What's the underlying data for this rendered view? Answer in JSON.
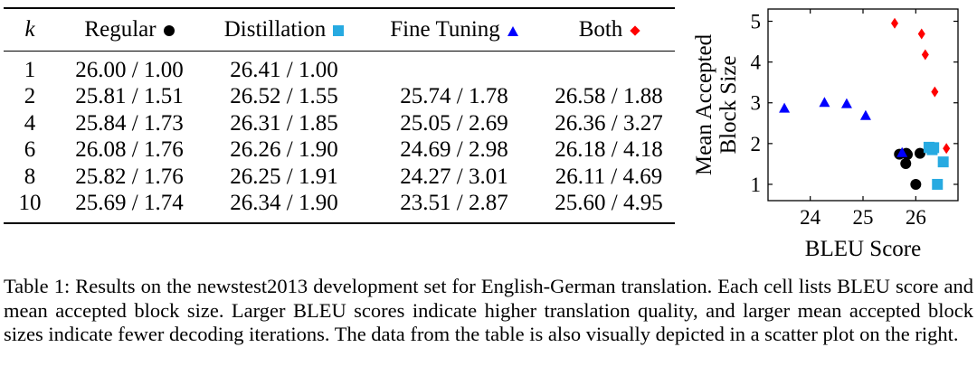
{
  "table": {
    "headers": [
      {
        "label": "k",
        "marker": "none"
      },
      {
        "label": "Regular",
        "marker": "circle",
        "color": "#000000"
      },
      {
        "label": "Distillation",
        "marker": "square",
        "color": "#27aae1"
      },
      {
        "label": "Fine Tuning",
        "marker": "triangle",
        "color": "#0000ff"
      },
      {
        "label": "Both",
        "marker": "diamond",
        "color": "#ff0000"
      }
    ],
    "rows": [
      [
        "1",
        "26.00 / 1.00",
        "26.41 / 1.00",
        "",
        ""
      ],
      [
        "2",
        "25.81 / 1.51",
        "26.52 / 1.55",
        "25.74 / 1.78",
        "26.58 / 1.88"
      ],
      [
        "4",
        "25.84 / 1.73",
        "26.31 / 1.85",
        "25.05 / 2.69",
        "26.36 / 3.27"
      ],
      [
        "6",
        "26.08 / 1.76",
        "26.26 / 1.90",
        "24.69 / 2.98",
        "26.18 / 4.18"
      ],
      [
        "8",
        "25.82 / 1.76",
        "26.25 / 1.91",
        "24.27 / 3.01",
        "26.11 / 4.69"
      ],
      [
        "10",
        "25.69 / 1.74",
        "26.34 / 1.90",
        "23.51 / 2.87",
        "25.60 / 4.95"
      ]
    ]
  },
  "chart_data": {
    "type": "scatter",
    "xlabel": "BLEU Score",
    "ylabel": "Mean Accepted Block Size",
    "xlim": [
      23.2,
      26.8
    ],
    "ylim": [
      0.6,
      5.3
    ],
    "xticks": [
      24,
      25,
      26
    ],
    "yticks": [
      1,
      2,
      3,
      4,
      5
    ],
    "grid": false,
    "legend": "none",
    "series": [
      {
        "name": "Regular",
        "marker": "circle",
        "color": "#000000",
        "points": [
          [
            26.0,
            1.0
          ],
          [
            25.81,
            1.51
          ],
          [
            25.84,
            1.73
          ],
          [
            26.08,
            1.76
          ],
          [
            25.82,
            1.76
          ],
          [
            25.69,
            1.74
          ]
        ]
      },
      {
        "name": "Distillation",
        "marker": "square",
        "color": "#27aae1",
        "points": [
          [
            26.41,
            1.0
          ],
          [
            26.52,
            1.55
          ],
          [
            26.31,
            1.85
          ],
          [
            26.26,
            1.9
          ],
          [
            26.25,
            1.91
          ],
          [
            26.34,
            1.9
          ]
        ]
      },
      {
        "name": "Fine Tuning",
        "marker": "triangle",
        "color": "#0000ff",
        "points": [
          [
            25.74,
            1.78
          ],
          [
            25.05,
            2.69
          ],
          [
            24.69,
            2.98
          ],
          [
            24.27,
            3.01
          ],
          [
            23.51,
            2.87
          ]
        ]
      },
      {
        "name": "Both",
        "marker": "diamond",
        "color": "#ff0000",
        "points": [
          [
            26.58,
            1.88
          ],
          [
            26.36,
            3.27
          ],
          [
            26.18,
            4.18
          ],
          [
            26.11,
            4.69
          ],
          [
            25.6,
            4.95
          ]
        ]
      }
    ]
  },
  "caption": "Table 1: Results on the newstest2013 development set for English-German translation. Each cell lists BLEU score and mean accepted block size. Larger BLEU scores indicate higher translation quality, and larger mean accepted block sizes indicate fewer decoding iterations. The data from the table is also visually depicted in a scatter plot on the right."
}
